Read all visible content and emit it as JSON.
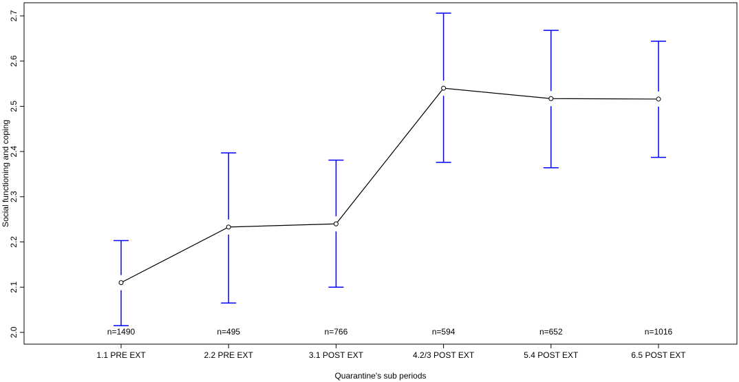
{
  "chart_data": {
    "type": "errorbar-line",
    "x_label": "Quarantine's sub periods",
    "y_label": "Social functioning and coping",
    "categories": [
      "1.1 PRE EXT",
      "2.2 PRE EXT",
      "3.1 POST EXT",
      "4.2/3 POST EXT",
      "5.4 POST EXT",
      "6.5 POST EXT"
    ],
    "values": [
      2.11,
      2.233,
      2.24,
      2.54,
      2.517,
      2.516
    ],
    "lower": [
      2.015,
      2.065,
      2.1,
      2.376,
      2.364,
      2.387
    ],
    "upper": [
      2.203,
      2.397,
      2.381,
      2.706,
      2.668,
      2.644
    ],
    "annotations": [
      "n=1490",
      "n=495",
      "n=766",
      "n=594",
      "n=652",
      "n=1016"
    ],
    "line_color": "#000000",
    "error_color": "#0000ff",
    "ylim": [
      1.974,
      2.729
    ],
    "yticks": [
      {
        "value": 2,
        "label": "2.0"
      },
      2.1,
      2.2,
      2.3,
      2.4,
      2.5,
      2.6,
      2.7
    ]
  }
}
